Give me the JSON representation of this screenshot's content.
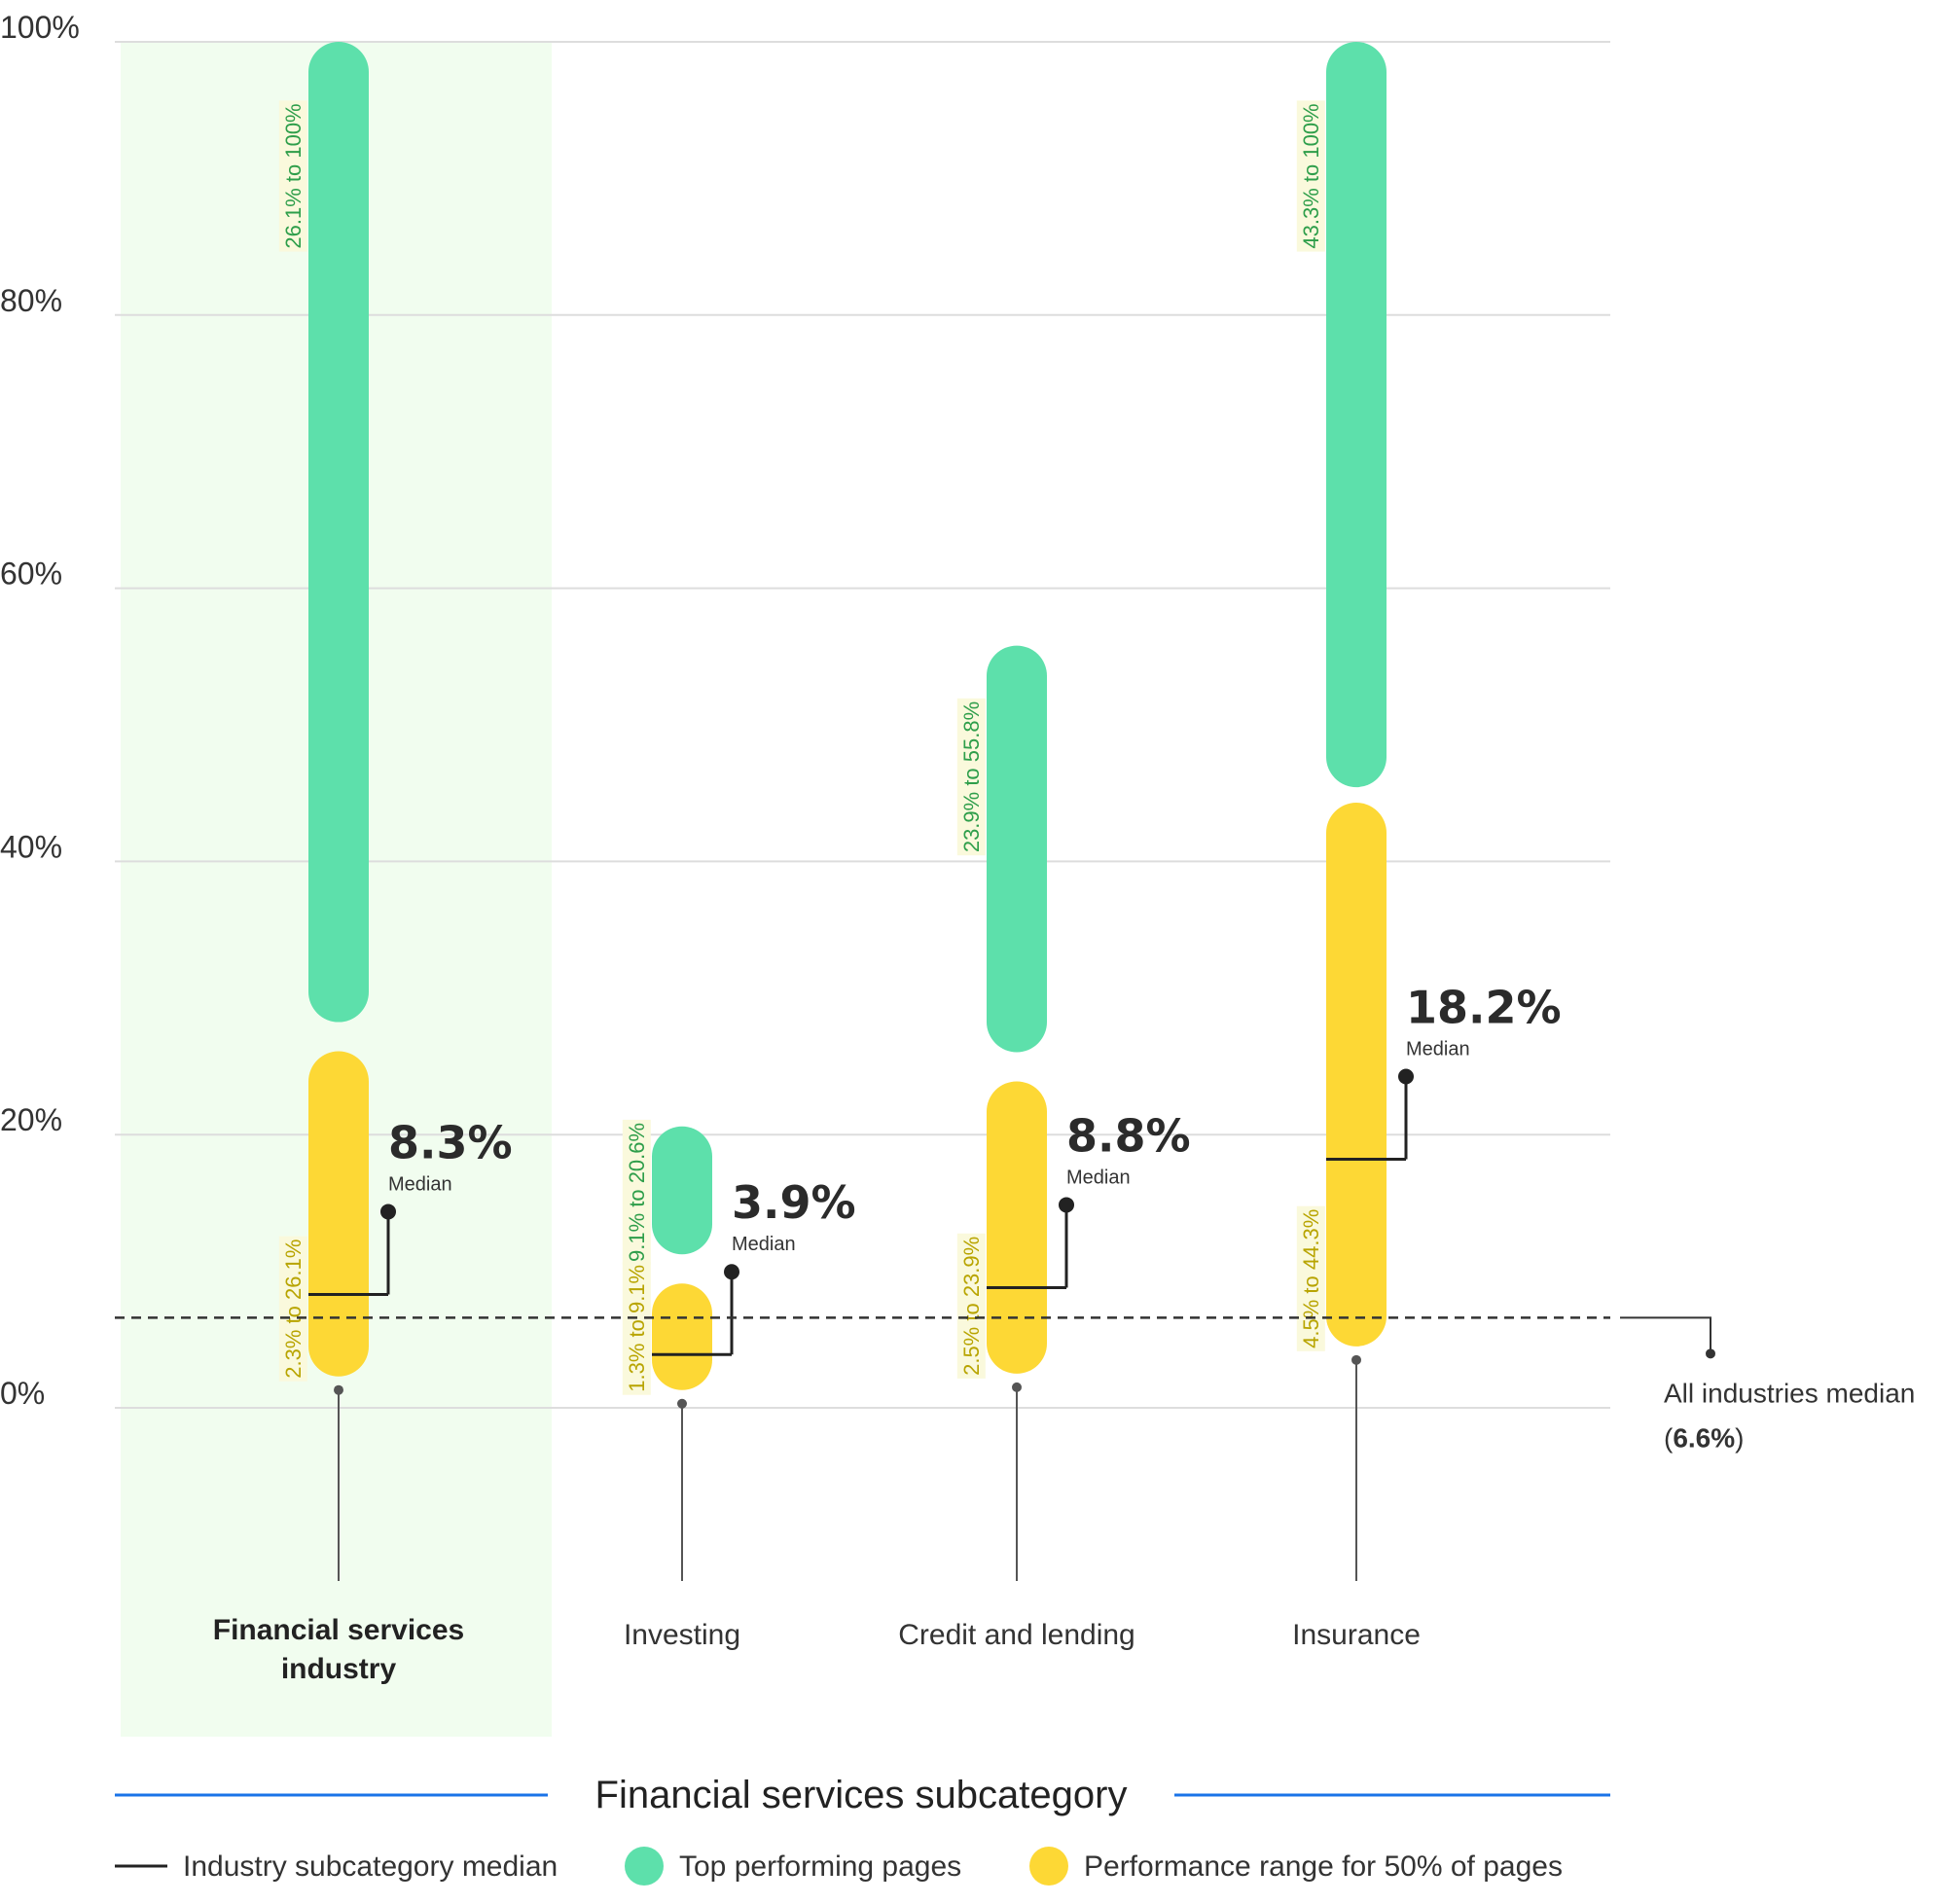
{
  "chart_data": {
    "type": "range-bar",
    "y_axis": {
      "ticks": [
        "100%",
        "80%",
        "60%",
        "40%",
        "20%",
        "0%"
      ],
      "tick_values": [
        100,
        80,
        60,
        40,
        20,
        0
      ],
      "ylim": [
        0,
        100
      ],
      "grid": true
    },
    "x_axis_title": "Financial services subcategory",
    "reference_line": {
      "label": "All industries median",
      "value_label": "6.6%",
      "value": 6.6
    },
    "median_word": "Median",
    "categories": [
      {
        "name_lines": [
          "Financial services",
          "industry"
        ],
        "highlighted": true,
        "range_50": [
          2.3,
          26.1
        ],
        "range_50_label": "2.3% to 26.1%",
        "top": [
          26.1,
          100
        ],
        "top_label": "26.1% to 100%",
        "median": 8.3,
        "median_label": "8.3%"
      },
      {
        "name_lines": [
          "Investing"
        ],
        "highlighted": false,
        "range_50": [
          1.3,
          9.1
        ],
        "range_50_label": "1.3% to 9.1%",
        "top": [
          9.1,
          20.6
        ],
        "top_label": "9.1% to 20.6%",
        "median": 3.9,
        "median_label": "3.9%"
      },
      {
        "name_lines": [
          "Credit and lending"
        ],
        "highlighted": false,
        "range_50": [
          2.5,
          23.9
        ],
        "range_50_label": "2.5% to 23.9%",
        "top": [
          23.9,
          55.8
        ],
        "top_label": "23.9% to 55.8%",
        "median": 8.8,
        "median_label": "8.8%"
      },
      {
        "name_lines": [
          "Insurance"
        ],
        "highlighted": false,
        "range_50": [
          4.5,
          44.3
        ],
        "range_50_label": "4.5% to 44.3%",
        "top": [
          43.3,
          100
        ],
        "top_label": "43.3% to 100%",
        "median": 18.2,
        "median_label": "18.2%"
      }
    ],
    "legend": [
      {
        "type": "line",
        "label": "Industry subcategory median"
      },
      {
        "type": "dot",
        "color_key": "green",
        "label": "Top performing pages"
      },
      {
        "type": "dot",
        "color_key": "yellow",
        "label": "Performance range for 50% of pages"
      }
    ],
    "colors": {
      "green": "#5de0ab",
      "yellow": "#fdd835",
      "highlight_bg": "#f1fdef",
      "grid": "#dddddd",
      "accent_line": "#1a73e8",
      "median_line": "#222222",
      "green_label_text": "#2e9e4a",
      "yellow_label_text": "#b8a400",
      "label_bg": "#faf9dc"
    }
  }
}
